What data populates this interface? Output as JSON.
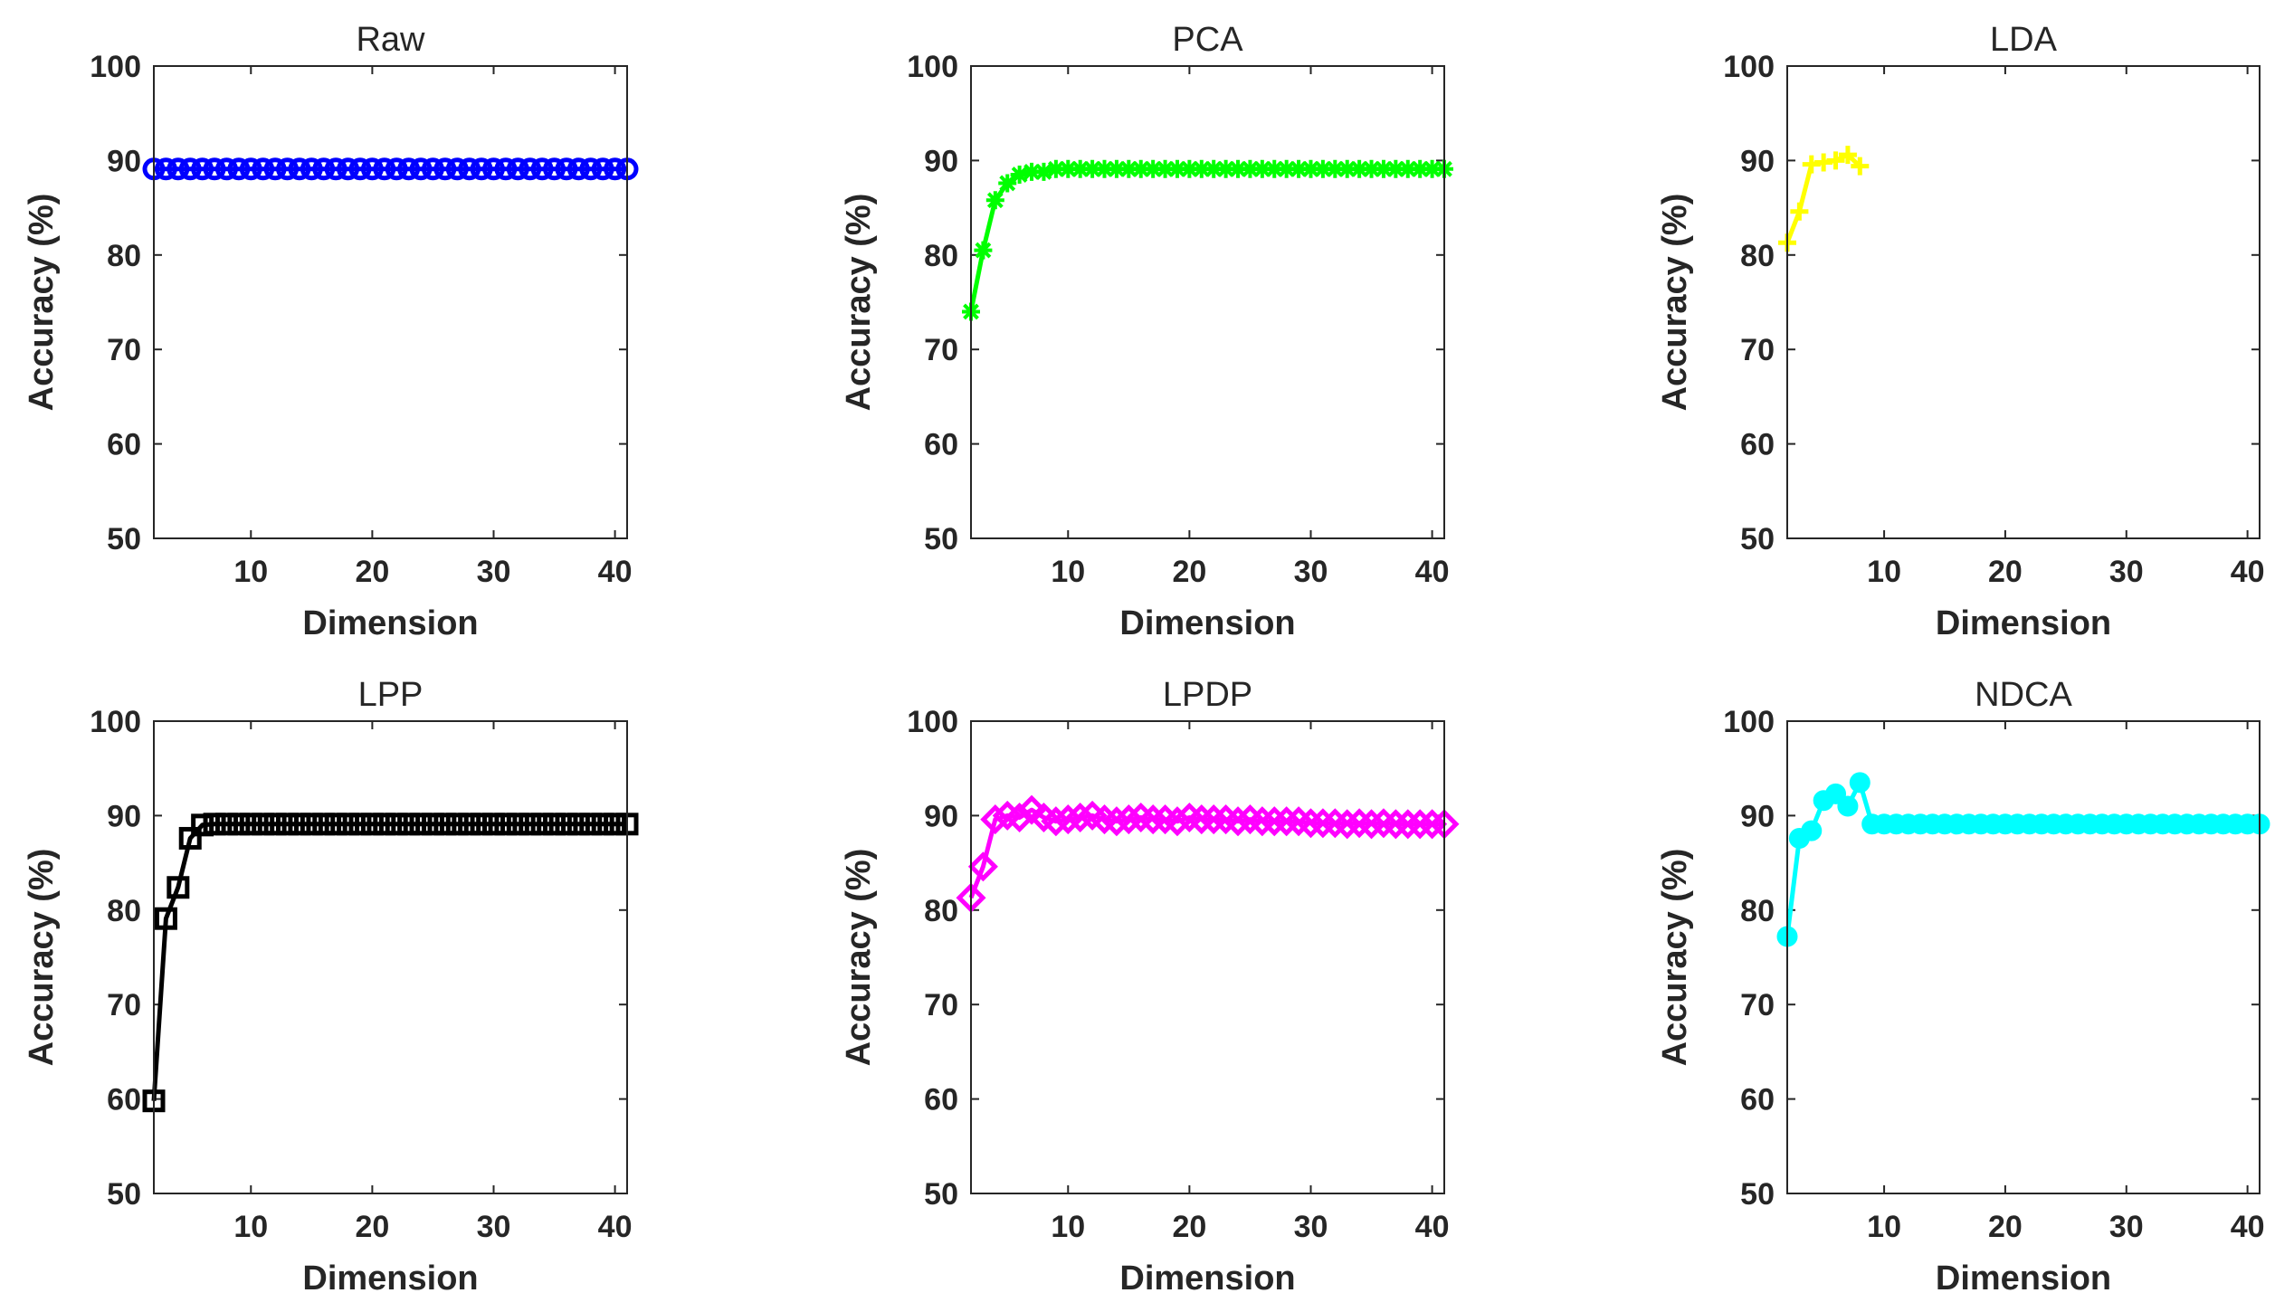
{
  "chart_data": [
    {
      "type": "line",
      "title": "Raw",
      "xlabel": "Dimension",
      "ylabel": "Accuracy (%)",
      "xlim": [
        2,
        41
      ],
      "ylim": [
        50,
        100
      ],
      "xticks": [
        10,
        20,
        30,
        40
      ],
      "yticks": [
        50,
        60,
        70,
        80,
        90,
        100
      ],
      "color": "#0000ff",
      "marker": "circle",
      "series": [
        {
          "name": "Raw",
          "x": [
            2,
            3,
            4,
            5,
            6,
            7,
            8,
            9,
            10,
            11,
            12,
            13,
            14,
            15,
            16,
            17,
            18,
            19,
            20,
            21,
            22,
            23,
            24,
            25,
            26,
            27,
            28,
            29,
            30,
            31,
            32,
            33,
            34,
            35,
            36,
            37,
            38,
            39,
            40,
            41
          ],
          "values": [
            89.1,
            89.1,
            89.1,
            89.1,
            89.1,
            89.1,
            89.1,
            89.1,
            89.1,
            89.1,
            89.1,
            89.1,
            89.1,
            89.1,
            89.1,
            89.1,
            89.1,
            89.1,
            89.1,
            89.1,
            89.1,
            89.1,
            89.1,
            89.1,
            89.1,
            89.1,
            89.1,
            89.1,
            89.1,
            89.1,
            89.1,
            89.1,
            89.1,
            89.1,
            89.1,
            89.1,
            89.1,
            89.1,
            89.1,
            89.1
          ]
        }
      ]
    },
    {
      "type": "line",
      "title": "PCA",
      "xlabel": "Dimension",
      "ylabel": "Accuracy (%)",
      "xlim": [
        2,
        41
      ],
      "ylim": [
        50,
        100
      ],
      "xticks": [
        10,
        20,
        30,
        40
      ],
      "yticks": [
        50,
        60,
        70,
        80,
        90,
        100
      ],
      "color": "#00ff00",
      "marker": "asterisk",
      "series": [
        {
          "name": "PCA",
          "x": [
            2,
            3,
            4,
            5,
            6,
            7,
            8,
            9,
            10,
            11,
            12,
            13,
            14,
            15,
            16,
            17,
            18,
            19,
            20,
            21,
            22,
            23,
            24,
            25,
            26,
            27,
            28,
            29,
            30,
            31,
            32,
            33,
            34,
            35,
            36,
            37,
            38,
            39,
            40,
            41
          ],
          "values": [
            74.0,
            80.5,
            85.8,
            87.6,
            88.5,
            88.8,
            88.8,
            89.1,
            89.1,
            89.1,
            89.1,
            89.1,
            89.1,
            89.1,
            89.1,
            89.1,
            89.1,
            89.1,
            89.1,
            89.1,
            89.1,
            89.1,
            89.1,
            89.1,
            89.1,
            89.1,
            89.1,
            89.1,
            89.1,
            89.1,
            89.1,
            89.1,
            89.1,
            89.1,
            89.1,
            89.1,
            89.1,
            89.1,
            89.1,
            89.1
          ]
        }
      ]
    },
    {
      "type": "line",
      "title": "LDA",
      "xlabel": "Dimension",
      "ylabel": "Accuracy (%)",
      "xlim": [
        2,
        41
      ],
      "ylim": [
        50,
        100
      ],
      "xticks": [
        10,
        20,
        30,
        40
      ],
      "yticks": [
        50,
        60,
        70,
        80,
        90,
        100
      ],
      "color": "#ffff00",
      "marker": "plus",
      "series": [
        {
          "name": "LDA",
          "x": [
            2,
            3,
            4,
            5,
            6,
            7,
            8
          ],
          "values": [
            81.3,
            84.6,
            89.6,
            89.8,
            90.0,
            90.6,
            89.4
          ]
        }
      ]
    },
    {
      "type": "line",
      "title": "LPP",
      "xlabel": "Dimension",
      "ylabel": "Accuracy (%)",
      "xlim": [
        2,
        41
      ],
      "ylim": [
        50,
        100
      ],
      "xticks": [
        10,
        20,
        30,
        40
      ],
      "yticks": [
        50,
        60,
        70,
        80,
        90,
        100
      ],
      "color": "#000000",
      "marker": "square",
      "series": [
        {
          "name": "LPP",
          "x": [
            2,
            3,
            4,
            5,
            6,
            7,
            8,
            9,
            10,
            11,
            12,
            13,
            14,
            15,
            16,
            17,
            18,
            19,
            20,
            21,
            22,
            23,
            24,
            25,
            26,
            27,
            28,
            29,
            30,
            31,
            32,
            33,
            34,
            35,
            36,
            37,
            38,
            39,
            40,
            41
          ],
          "values": [
            59.8,
            79.1,
            82.4,
            87.6,
            89.0,
            89.1,
            89.1,
            89.1,
            89.1,
            89.1,
            89.1,
            89.1,
            89.1,
            89.1,
            89.1,
            89.1,
            89.1,
            89.1,
            89.1,
            89.1,
            89.1,
            89.1,
            89.1,
            89.1,
            89.1,
            89.1,
            89.1,
            89.1,
            89.1,
            89.1,
            89.1,
            89.1,
            89.1,
            89.1,
            89.1,
            89.1,
            89.1,
            89.1,
            89.1,
            89.1
          ]
        }
      ]
    },
    {
      "type": "line",
      "title": "LPDP",
      "xlabel": "Dimension",
      "ylabel": "Accuracy (%)",
      "xlim": [
        2,
        41
      ],
      "ylim": [
        50,
        100
      ],
      "xticks": [
        10,
        20,
        30,
        40
      ],
      "yticks": [
        50,
        60,
        70,
        80,
        90,
        100
      ],
      "color": "#ff00ff",
      "marker": "diamond",
      "series": [
        {
          "name": "LPDP",
          "x": [
            2,
            3,
            4,
            5,
            6,
            7,
            8,
            9,
            10,
            11,
            12,
            13,
            14,
            15,
            16,
            17,
            18,
            19,
            20,
            21,
            22,
            23,
            24,
            25,
            26,
            27,
            28,
            29,
            30,
            31,
            32,
            33,
            34,
            35,
            36,
            37,
            38,
            39,
            40,
            41
          ],
          "values": [
            81.3,
            84.6,
            89.6,
            90.0,
            89.8,
            90.6,
            89.8,
            89.4,
            89.6,
            89.8,
            90.0,
            89.6,
            89.4,
            89.6,
            89.8,
            89.6,
            89.6,
            89.4,
            89.8,
            89.6,
            89.6,
            89.6,
            89.4,
            89.6,
            89.4,
            89.4,
            89.4,
            89.4,
            89.2,
            89.2,
            89.2,
            89.1,
            89.2,
            89.1,
            89.2,
            89.1,
            89.1,
            89.1,
            89.1,
            89.1
          ]
        }
      ]
    },
    {
      "type": "line",
      "title": "NDCA",
      "xlabel": "Dimension",
      "ylabel": "Accuracy (%)",
      "xlim": [
        2,
        41
      ],
      "ylim": [
        50,
        100
      ],
      "xticks": [
        10,
        20,
        30,
        40
      ],
      "yticks": [
        50,
        60,
        70,
        80,
        90,
        100
      ],
      "color": "#00ffff",
      "marker": "filled-circle",
      "series": [
        {
          "name": "NDCA",
          "x": [
            2,
            3,
            4,
            5,
            6,
            7,
            8,
            9,
            10,
            11,
            12,
            13,
            14,
            15,
            16,
            17,
            18,
            19,
            20,
            21,
            22,
            23,
            24,
            25,
            26,
            27,
            28,
            29,
            30,
            31,
            32,
            33,
            34,
            35,
            36,
            37,
            38,
            39,
            40,
            41
          ],
          "values": [
            77.2,
            87.6,
            88.4,
            91.6,
            92.3,
            91.0,
            93.5,
            89.1,
            89.1,
            89.1,
            89.1,
            89.1,
            89.1,
            89.1,
            89.1,
            89.1,
            89.1,
            89.1,
            89.1,
            89.1,
            89.1,
            89.1,
            89.1,
            89.1,
            89.1,
            89.1,
            89.1,
            89.1,
            89.1,
            89.1,
            89.1,
            89.1,
            89.1,
            89.1,
            89.1,
            89.1,
            89.1,
            89.1,
            89.1,
            89.1
          ]
        }
      ]
    }
  ]
}
